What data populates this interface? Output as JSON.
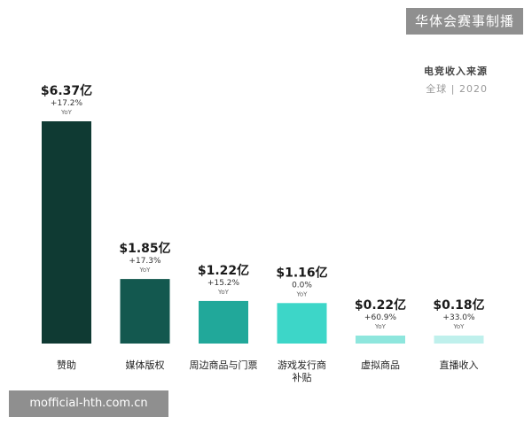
{
  "watermark_top": "华体会赛事制播",
  "watermark_bottom": "mofficial-hth.com.cn",
  "chart_data": {
    "type": "bar",
    "title": "电竞收入来源",
    "subtitle": "全球 | 2020",
    "categories": [
      "赞助",
      "媒体版权",
      "周边商品与门票",
      "游戏发行商\n补贴",
      "虚拟商品",
      "直播收入"
    ],
    "values": [
      6.37,
      1.85,
      1.22,
      1.16,
      0.22,
      0.18
    ],
    "value_labels": [
      "$6.37亿",
      "$1.85亿",
      "$1.22亿",
      "$1.16亿",
      "$0.22亿",
      "$0.18亿"
    ],
    "growth_labels": [
      "+17.2%",
      "+17.3%",
      "+15.2%",
      "0.0%",
      "+60.9%",
      "+33.0%"
    ],
    "yoy_label": "YoY",
    "colors": [
      "#0f3a33",
      "#13584f",
      "#21a89a",
      "#3dd6c8",
      "#8ee6dd",
      "#bff0ec"
    ],
    "ylim": [
      0,
      6.37
    ],
    "grid": false
  }
}
